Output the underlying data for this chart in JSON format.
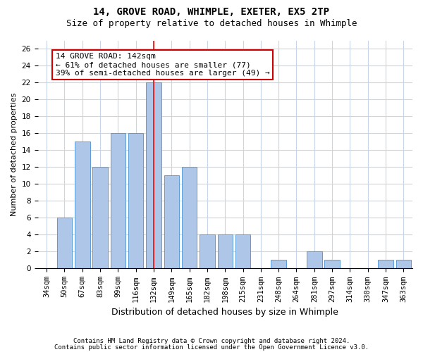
{
  "title1": "14, GROVE ROAD, WHIMPLE, EXETER, EX5 2TP",
  "title2": "Size of property relative to detached houses in Whimple",
  "xlabel": "Distribution of detached houses by size in Whimple",
  "ylabel": "Number of detached properties",
  "categories": [
    "34sqm",
    "50sqm",
    "67sqm",
    "83sqm",
    "99sqm",
    "116sqm",
    "132sqm",
    "149sqm",
    "165sqm",
    "182sqm",
    "198sqm",
    "215sqm",
    "231sqm",
    "248sqm",
    "264sqm",
    "281sqm",
    "297sqm",
    "314sqm",
    "330sqm",
    "347sqm",
    "363sqm"
  ],
  "values": [
    0,
    6,
    15,
    12,
    16,
    16,
    22,
    11,
    12,
    4,
    4,
    4,
    0,
    1,
    0,
    2,
    1,
    0,
    0,
    1,
    1
  ],
  "bar_color": "#aec6e8",
  "bar_edge_color": "#5b9bd5",
  "highlight_index": 6,
  "red_line_index": 6,
  "annotation_line1": "14 GROVE ROAD: 142sqm",
  "annotation_line2": "← 61% of detached houses are smaller (77)",
  "annotation_line3": "39% of semi-detached houses are larger (49) →",
  "annotation_box_color": "#ffffff",
  "annotation_box_edge": "#cc0000",
  "ylim": [
    0,
    27
  ],
  "yticks": [
    0,
    2,
    4,
    6,
    8,
    10,
    12,
    14,
    16,
    18,
    20,
    22,
    24,
    26
  ],
  "footer1": "Contains HM Land Registry data © Crown copyright and database right 2024.",
  "footer2": "Contains public sector information licensed under the Open Government Licence v3.0.",
  "bg_color": "#ffffff",
  "grid_color": "#c8d4e8",
  "title1_fontsize": 10,
  "title2_fontsize": 9,
  "ylabel_fontsize": 8,
  "xlabel_fontsize": 9,
  "tick_fontsize": 7.5,
  "footer_fontsize": 6.5,
  "annotation_fontsize": 8
}
